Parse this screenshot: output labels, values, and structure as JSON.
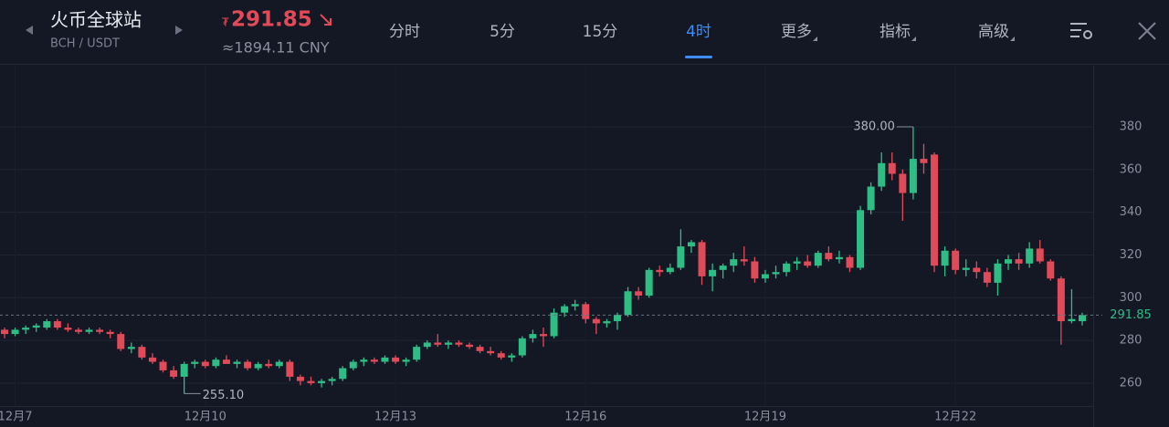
{
  "header": {
    "exchange": "火币全球站",
    "pair": "BCH / USDT",
    "currency_symbol": "₮",
    "price": "291.85",
    "cny_price": "≈1894.11 CNY",
    "tabs": [
      "分时",
      "5分",
      "15分",
      "4时",
      "更多",
      "指标",
      "高级"
    ],
    "active_tab": 3
  },
  "chart_data": {
    "type": "candlestick",
    "up_color": "#2ebd85",
    "down_color": "#e04a59",
    "grid": true,
    "ylim": [
      249.3,
      408.6
    ],
    "yticks": [
      260,
      280,
      300,
      320,
      340,
      360,
      380
    ],
    "last_price": 291.85,
    "max_label": "380.00",
    "min_label": "255.10",
    "categories": [
      null,
      "12月7",
      null,
      null,
      null,
      null,
      null,
      null,
      null,
      null,
      null,
      null,
      null,
      null,
      null,
      null,
      null,
      null,
      null,
      "12月10",
      null,
      null,
      null,
      null,
      null,
      null,
      null,
      null,
      null,
      null,
      null,
      null,
      null,
      null,
      null,
      null,
      null,
      "12月13",
      null,
      null,
      null,
      null,
      null,
      null,
      null,
      null,
      null,
      null,
      null,
      null,
      null,
      null,
      null,
      null,
      null,
      "12月16",
      null,
      null,
      null,
      null,
      null,
      null,
      null,
      null,
      null,
      null,
      null,
      null,
      null,
      null,
      null,
      null,
      "12月19",
      null,
      null,
      null,
      null,
      null,
      null,
      null,
      null,
      null,
      null,
      null,
      null,
      null,
      null,
      null,
      null,
      null,
      "12月22",
      null,
      null,
      null,
      null,
      null,
      null,
      null,
      null,
      null,
      null,
      null,
      null
    ],
    "candles": [
      [
        285,
        286,
        281,
        283
      ],
      [
        283,
        286,
        282,
        285
      ],
      [
        285,
        287,
        283,
        286
      ],
      [
        286,
        288,
        284,
        287
      ],
      [
        286,
        290,
        285,
        289
      ],
      [
        289,
        290,
        285,
        286
      ],
      [
        286,
        288,
        284,
        285
      ],
      [
        285,
        286,
        283,
        284
      ],
      [
        284,
        286,
        283,
        285
      ],
      [
        285,
        286,
        283,
        284
      ],
      [
        284,
        285,
        281,
        283
      ],
      [
        283,
        284,
        275,
        276
      ],
      [
        276,
        279,
        274,
        277
      ],
      [
        277,
        278,
        271,
        272
      ],
      [
        272,
        274,
        269,
        270
      ],
      [
        270,
        271,
        265,
        266
      ],
      [
        266,
        268,
        262,
        263
      ],
      [
        263,
        270,
        255.1,
        269
      ],
      [
        269,
        271,
        267,
        270
      ],
      [
        270,
        271,
        267,
        268
      ],
      [
        268,
        272,
        267,
        271
      ],
      [
        271,
        273,
        269,
        269
      ],
      [
        269,
        271,
        267,
        270
      ],
      [
        270,
        271,
        266,
        267
      ],
      [
        267,
        270,
        266,
        269
      ],
      [
        269,
        271,
        267,
        268
      ],
      [
        268,
        271,
        267,
        270
      ],
      [
        270,
        271,
        261,
        263
      ],
      [
        263,
        264,
        259,
        261
      ],
      [
        261,
        263,
        259,
        260
      ],
      [
        260,
        262,
        258,
        261
      ],
      [
        261,
        263,
        259,
        262
      ],
      [
        262,
        268,
        261,
        267
      ],
      [
        267,
        271,
        266,
        270
      ],
      [
        270,
        272,
        268,
        271
      ],
      [
        271,
        272,
        269,
        270
      ],
      [
        270,
        273,
        269,
        272
      ],
      [
        272,
        273,
        269,
        270
      ],
      [
        270,
        272,
        268,
        271
      ],
      [
        271,
        278,
        270,
        277
      ],
      [
        277,
        280,
        276,
        279
      ],
      [
        279,
        283,
        277,
        278
      ],
      [
        278,
        280,
        276,
        279
      ],
      [
        279,
        280,
        277,
        278
      ],
      [
        278,
        279,
        276,
        277
      ],
      [
        277,
        278,
        274,
        275
      ],
      [
        275,
        277,
        273,
        274
      ],
      [
        274,
        275,
        271,
        272
      ],
      [
        272,
        274,
        270,
        273
      ],
      [
        273,
        282,
        272,
        281
      ],
      [
        281,
        285,
        279,
        283
      ],
      [
        283,
        286,
        277,
        282
      ],
      [
        282,
        295,
        281,
        293
      ],
      [
        293,
        297,
        291,
        296
      ],
      [
        296,
        299,
        294,
        297
      ],
      [
        297,
        298,
        288,
        290
      ],
      [
        290,
        291,
        283,
        288
      ],
      [
        288,
        290,
        286,
        289
      ],
      [
        289,
        293,
        285,
        292
      ],
      [
        292,
        305,
        291,
        303
      ],
      [
        303,
        305,
        299,
        301
      ],
      [
        301,
        314,
        300,
        313
      ],
      [
        313,
        315,
        310,
        312
      ],
      [
        312,
        316,
        311,
        314
      ],
      [
        314,
        332,
        313,
        324
      ],
      [
        324,
        327,
        321,
        326
      ],
      [
        326,
        327,
        306,
        310
      ],
      [
        310,
        316,
        303,
        313
      ],
      [
        313,
        316,
        309,
        315
      ],
      [
        315,
        321,
        312,
        318
      ],
      [
        318,
        324,
        315,
        317
      ],
      [
        317,
        319,
        307,
        309
      ],
      [
        309,
        313,
        307,
        311
      ],
      [
        311,
        315,
        309,
        312
      ],
      [
        312,
        317,
        310,
        316
      ],
      [
        316,
        319,
        313,
        317
      ],
      [
        317,
        320,
        314,
        315
      ],
      [
        315,
        322,
        314,
        321
      ],
      [
        321,
        324,
        317,
        318
      ],
      [
        318,
        322,
        316,
        319
      ],
      [
        319,
        320,
        312,
        314
      ],
      [
        314,
        343,
        313,
        341
      ],
      [
        341,
        354,
        339,
        352
      ],
      [
        352,
        368,
        350,
        363
      ],
      [
        363,
        368,
        355,
        358
      ],
      [
        358,
        360,
        336,
        349
      ],
      [
        349,
        380,
        346,
        365
      ],
      [
        365,
        372,
        358,
        363
      ],
      [
        367,
        368,
        312,
        315
      ],
      [
        315,
        324,
        310,
        322
      ],
      [
        322,
        323,
        311,
        313
      ],
      [
        313,
        318,
        310,
        314
      ],
      [
        314,
        317,
        309,
        312
      ],
      [
        312,
        314,
        305,
        307
      ],
      [
        307,
        318,
        301,
        316
      ],
      [
        316,
        320,
        313,
        318
      ],
      [
        318,
        321,
        313,
        316
      ],
      [
        316,
        326,
        314,
        323
      ],
      [
        323,
        327,
        316,
        317
      ],
      [
        317,
        318,
        308,
        309
      ],
      [
        309,
        310,
        278,
        289
      ],
      [
        289,
        304,
        288,
        290
      ],
      [
        289,
        293,
        287,
        291.85
      ]
    ]
  }
}
